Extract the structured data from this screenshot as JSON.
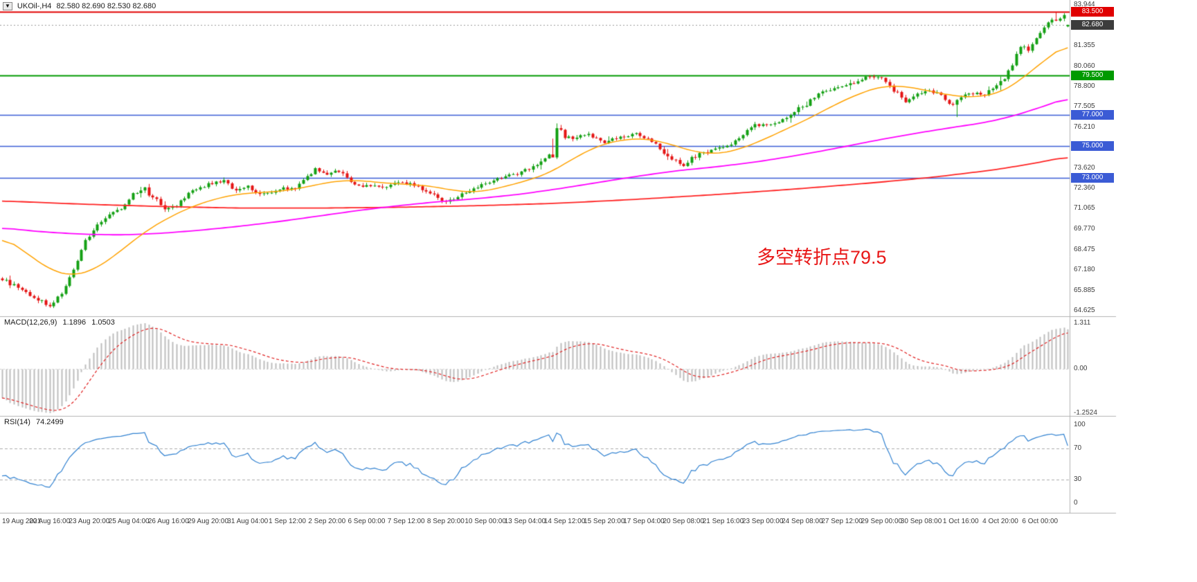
{
  "header": {
    "menu_icon_glyph": "▼",
    "symbol": "UKOil-,H4",
    "ohlc": "82.580 82.690 82.530 82.680"
  },
  "annotation": {
    "text": "多空转折点79.5",
    "color": "#e81717"
  },
  "chart_data": {
    "type": "candlestick",
    "symbol": "UKOil-",
    "timeframe": "H4",
    "ohlc_current": {
      "open": "82.580",
      "high": "82.690",
      "low": "82.530",
      "close": "82.680"
    },
    "up_color": "#14a014",
    "down_color": "#e41414",
    "price_axis": {
      "range": [
        64.35,
        84.25
      ],
      "labels": [
        "83.944",
        "81.355",
        "80.060",
        "78.800",
        "77.505",
        "76.210",
        "73.620",
        "72.360",
        "71.065",
        "69.770",
        "68.475",
        "67.180",
        "65.885",
        "64.625"
      ]
    },
    "hlines": [
      {
        "price": 83.5,
        "label": "83.500",
        "color": "#e00000",
        "width": 2
      },
      {
        "price": 79.5,
        "label": "79.500",
        "color": "#009a00",
        "width": 2
      },
      {
        "price": 77.0,
        "label": "77.000",
        "color": "#3b5bd5",
        "width": 1.6
      },
      {
        "price": 75.0,
        "label": "75.000",
        "color": "#3b5bd5",
        "width": 1.6
      },
      {
        "price": 73.0,
        "label": "73.000",
        "color": "#3b5bd5",
        "width": 1.6
      }
    ],
    "current_price": {
      "price": 82.68,
      "label": "82.680",
      "color": "#3c3c3c"
    },
    "x_labels": [
      "19 Aug 2021",
      "20 Aug 16:00",
      "23 Aug 20:00",
      "25 Aug 04:00",
      "26 Aug 16:00",
      "29 Aug 20:00",
      "31 Aug 04:00",
      "1 Sep 12:00",
      "2 Sep 20:00",
      "6 Sep 00:00",
      "7 Sep 12:00",
      "8 Sep 20:00",
      "10 Sep 00:00",
      "13 Sep 04:00",
      "14 Sep 12:00",
      "15 Sep 20:00",
      "17 Sep 04:00",
      "20 Sep 08:00",
      "21 Sep 16:00",
      "23 Sep 00:00",
      "24 Sep 08:00",
      "27 Sep 12:00",
      "29 Sep 00:00",
      "30 Sep 08:00",
      "1 Oct 16:00",
      "4 Oct 20:00",
      "6 Oct 00:00"
    ],
    "candles_per_label": 10,
    "num_candles": 270,
    "close_path_anchors": [
      [
        0,
        66.6
      ],
      [
        3,
        66.3
      ],
      [
        6,
        65.8
      ],
      [
        9,
        65.3
      ],
      [
        12,
        64.95
      ],
      [
        15,
        65.7
      ],
      [
        18,
        67.2
      ],
      [
        21,
        69.0
      ],
      [
        24,
        70.0
      ],
      [
        27,
        70.6
      ],
      [
        30,
        71.1
      ],
      [
        33,
        72.0
      ],
      [
        36,
        72.35
      ],
      [
        39,
        71.6
      ],
      [
        41,
        70.9
      ],
      [
        44,
        71.3
      ],
      [
        47,
        72.0
      ],
      [
        50,
        72.4
      ],
      [
        53,
        72.7
      ],
      [
        56,
        72.85
      ],
      [
        59,
        72.2
      ],
      [
        62,
        72.45
      ],
      [
        65,
        71.9
      ],
      [
        68,
        72.1
      ],
      [
        71,
        72.4
      ],
      [
        74,
        72.3
      ],
      [
        77,
        73.1
      ],
      [
        79,
        73.55
      ],
      [
        82,
        73.2
      ],
      [
        85,
        73.45
      ],
      [
        88,
        72.8
      ],
      [
        91,
        72.4
      ],
      [
        94,
        72.6
      ],
      [
        97,
        72.4
      ],
      [
        100,
        72.7
      ],
      [
        103,
        72.6
      ],
      [
        106,
        72.3
      ],
      [
        109,
        71.9
      ],
      [
        112,
        71.5
      ],
      [
        115,
        71.8
      ],
      [
        118,
        72.2
      ],
      [
        121,
        72.6
      ],
      [
        124,
        72.9
      ],
      [
        127,
        73.1
      ],
      [
        130,
        73.3
      ],
      [
        133,
        73.6
      ],
      [
        136,
        73.9
      ],
      [
        138,
        74.5
      ],
      [
        140,
        76.1
      ],
      [
        142,
        75.6
      ],
      [
        144,
        75.5
      ],
      [
        148,
        75.75
      ],
      [
        152,
        75.3
      ],
      [
        156,
        75.6
      ],
      [
        160,
        75.85
      ],
      [
        164,
        75.3
      ],
      [
        168,
        74.4
      ],
      [
        172,
        73.8
      ],
      [
        176,
        74.5
      ],
      [
        180,
        74.8
      ],
      [
        184,
        75.2
      ],
      [
        187,
        75.8
      ],
      [
        190,
        76.4
      ],
      [
        194,
        76.3
      ],
      [
        198,
        76.9
      ],
      [
        202,
        77.6
      ],
      [
        206,
        78.3
      ],
      [
        209,
        78.6
      ],
      [
        213,
        78.9
      ],
      [
        216,
        79.1
      ],
      [
        219,
        79.5
      ],
      [
        222,
        79.35
      ],
      [
        225,
        78.5
      ],
      [
        228,
        77.8
      ],
      [
        231,
        78.3
      ],
      [
        234,
        78.55
      ],
      [
        237,
        78.2
      ],
      [
        240,
        77.6
      ],
      [
        242,
        78.1
      ],
      [
        245,
        78.35
      ],
      [
        248,
        78.2
      ],
      [
        251,
        78.85
      ],
      [
        253,
        79.2
      ],
      [
        255,
        80.2
      ],
      [
        257,
        81.35
      ],
      [
        259,
        81.1
      ],
      [
        261,
        81.9
      ],
      [
        263,
        82.45
      ],
      [
        265,
        83.1
      ],
      [
        266,
        82.85
      ],
      [
        268,
        83.25
      ],
      [
        269,
        82.68
      ]
    ],
    "ma_lines": [
      {
        "name": "slow-ma",
        "color": "#ff2222",
        "width": 1.8,
        "points": [
          [
            0,
            71.55
          ],
          [
            20,
            71.35
          ],
          [
            40,
            71.2
          ],
          [
            60,
            71.1
          ],
          [
            80,
            71.1
          ],
          [
            100,
            71.15
          ],
          [
            120,
            71.25
          ],
          [
            140,
            71.4
          ],
          [
            160,
            71.65
          ],
          [
            180,
            71.95
          ],
          [
            200,
            72.3
          ],
          [
            220,
            72.7
          ],
          [
            235,
            73.05
          ],
          [
            250,
            73.5
          ],
          [
            260,
            73.9
          ],
          [
            269,
            74.35
          ]
        ]
      },
      {
        "name": "medium-ma",
        "color": "#ff00ff",
        "width": 1.8,
        "points": [
          [
            0,
            69.85
          ],
          [
            10,
            69.6
          ],
          [
            20,
            69.45
          ],
          [
            30,
            69.4
          ],
          [
            40,
            69.5
          ],
          [
            50,
            69.7
          ],
          [
            60,
            69.95
          ],
          [
            70,
            70.25
          ],
          [
            80,
            70.6
          ],
          [
            90,
            70.95
          ],
          [
            100,
            71.25
          ],
          [
            110,
            71.5
          ],
          [
            120,
            71.7
          ],
          [
            130,
            71.95
          ],
          [
            140,
            72.3
          ],
          [
            150,
            72.7
          ],
          [
            160,
            73.1
          ],
          [
            170,
            73.45
          ],
          [
            180,
            73.7
          ],
          [
            190,
            74.0
          ],
          [
            200,
            74.4
          ],
          [
            210,
            74.85
          ],
          [
            220,
            75.35
          ],
          [
            230,
            75.8
          ],
          [
            240,
            76.2
          ],
          [
            248,
            76.5
          ],
          [
            255,
            76.9
          ],
          [
            260,
            77.3
          ],
          [
            265,
            77.7
          ],
          [
            269,
            78.1
          ]
        ]
      },
      {
        "name": "fast-ma",
        "color": "#ffa200",
        "width": 1.5,
        "points": [
          [
            0,
            69.3
          ],
          [
            6,
            68.3
          ],
          [
            12,
            67.2
          ],
          [
            18,
            66.8
          ],
          [
            24,
            67.3
          ],
          [
            30,
            68.4
          ],
          [
            36,
            69.6
          ],
          [
            42,
            70.5
          ],
          [
            48,
            71.2
          ],
          [
            54,
            71.7
          ],
          [
            60,
            72.0
          ],
          [
            66,
            72.1
          ],
          [
            72,
            72.2
          ],
          [
            78,
            72.5
          ],
          [
            84,
            72.8
          ],
          [
            90,
            72.85
          ],
          [
            96,
            72.7
          ],
          [
            102,
            72.6
          ],
          [
            108,
            72.5
          ],
          [
            114,
            72.2
          ],
          [
            120,
            72.1
          ],
          [
            126,
            72.4
          ],
          [
            132,
            72.8
          ],
          [
            138,
            73.3
          ],
          [
            144,
            74.2
          ],
          [
            150,
            75.0
          ],
          [
            156,
            75.4
          ],
          [
            162,
            75.5
          ],
          [
            168,
            75.2
          ],
          [
            174,
            74.7
          ],
          [
            180,
            74.5
          ],
          [
            186,
            74.8
          ],
          [
            192,
            75.4
          ],
          [
            198,
            76.1
          ],
          [
            204,
            76.8
          ],
          [
            210,
            77.6
          ],
          [
            216,
            78.3
          ],
          [
            222,
            78.8
          ],
          [
            228,
            78.8
          ],
          [
            234,
            78.5
          ],
          [
            240,
            78.2
          ],
          [
            246,
            78.1
          ],
          [
            252,
            78.4
          ],
          [
            256,
            79.0
          ],
          [
            260,
            79.8
          ],
          [
            264,
            80.6
          ],
          [
            269,
            81.5
          ]
        ]
      }
    ],
    "macd": {
      "label": "MACD(12,26,9)",
      "value_main": "1.1896",
      "value_signal": "1.0503",
      "params": {
        "fast": 12,
        "slow": 26,
        "signal": 9
      },
      "axis_labels": [
        "1.311",
        "0.00",
        "-1.2524"
      ],
      "range": [
        -1.2524,
        1.311
      ],
      "histogram_color": "#bdbdbd",
      "signal_color": "#e02020"
    },
    "rsi": {
      "label": "RSI(14)",
      "value": "74.2499",
      "period": 14,
      "axis_labels": [
        "100",
        "70",
        "30",
        "0"
      ],
      "levels": [
        70,
        30
      ],
      "range": [
        0,
        100
      ],
      "color": "#2f80d0",
      "level_color": "#ababab"
    }
  }
}
